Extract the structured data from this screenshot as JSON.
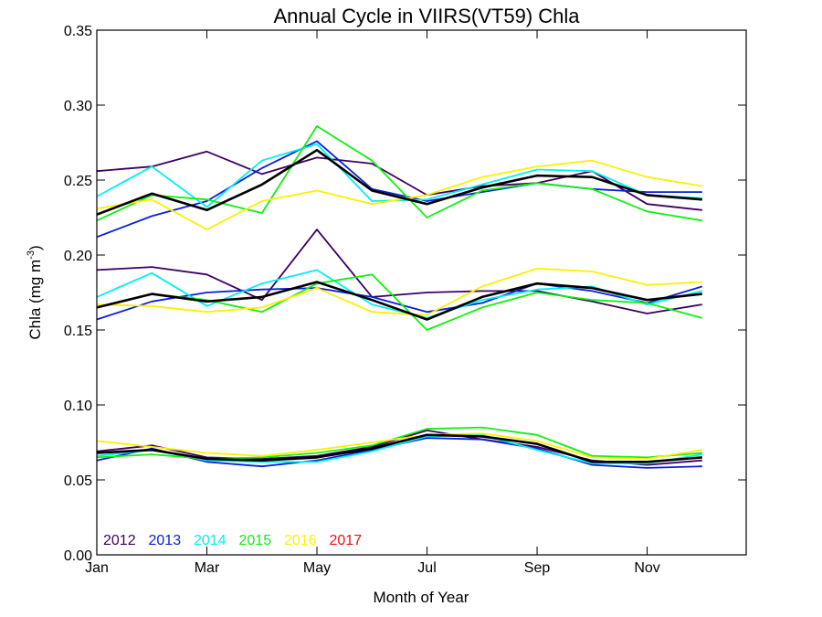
{
  "chart_data": {
    "type": "line",
    "title": "Annual Cycle in VIIRS(VT59) Chla",
    "xlabel": "Month of Year",
    "ylabel": "Chla (mg m",
    "ylabel_sup": "-3",
    "ylabel_close": ")",
    "xlim": [
      1,
      12.8
    ],
    "ylim": [
      0,
      0.35
    ],
    "x_ticks": [
      {
        "value": 1,
        "label": "Jan"
      },
      {
        "value": 3,
        "label": "Mar"
      },
      {
        "value": 5,
        "label": "May"
      },
      {
        "value": 7,
        "label": "Jul"
      },
      {
        "value": 9,
        "label": "Sep"
      },
      {
        "value": 11,
        "label": "Nov"
      }
    ],
    "y_ticks": [
      {
        "value": 0,
        "label": "0.00"
      },
      {
        "value": 0.05,
        "label": "0.05"
      },
      {
        "value": 0.1,
        "label": "0.10"
      },
      {
        "value": 0.15,
        "label": "0.15"
      },
      {
        "value": 0.2,
        "label": "0.20"
      },
      {
        "value": 0.25,
        "label": "0.25"
      },
      {
        "value": 0.3,
        "label": "0.30"
      },
      {
        "value": 0.35,
        "label": "0.35"
      }
    ],
    "grid": false,
    "legend_position": "bottom-left",
    "x": [
      1,
      2,
      3,
      4,
      5,
      6,
      7,
      8,
      9,
      10,
      11,
      12
    ],
    "series": [
      {
        "name": "2012",
        "color": "#3d0060",
        "groups": [
          [
            0.256,
            0.259,
            0.269,
            0.254,
            0.265,
            0.261,
            0.24,
            0.246,
            0.248,
            0.256,
            0.234,
            0.23
          ],
          [
            0.19,
            0.192,
            0.187,
            0.17,
            0.217,
            0.172,
            0.175,
            0.176,
            0.176,
            0.169,
            0.161,
            0.167
          ],
          [
            0.069,
            0.073,
            0.065,
            0.064,
            0.066,
            0.072,
            0.083,
            0.077,
            0.072,
            0.063,
            0.06,
            0.063
          ]
        ]
      },
      {
        "name": "2013",
        "color": "#0a1edc",
        "groups": [
          [
            0.212,
            0.226,
            0.236,
            0.258,
            0.276,
            0.244,
            0.236,
            0.242,
            0.248,
            0.244,
            0.242,
            0.242
          ],
          [
            0.157,
            0.169,
            0.175,
            0.177,
            0.178,
            0.172,
            0.162,
            0.168,
            0.181,
            0.176,
            0.168,
            0.179
          ],
          [
            0.063,
            0.071,
            0.062,
            0.059,
            0.063,
            0.07,
            0.078,
            0.077,
            0.071,
            0.06,
            0.058,
            0.059
          ]
        ]
      },
      {
        "name": "2014",
        "color": "#00f0f0",
        "groups": [
          [
            0.239,
            0.259,
            0.232,
            0.263,
            0.274,
            0.236,
            0.237,
            0.247,
            0.257,
            0.256,
            0.24,
            0.238
          ],
          [
            0.172,
            0.188,
            0.166,
            0.181,
            0.19,
            0.167,
            0.158,
            0.17,
            0.177,
            0.179,
            0.167,
            0.176
          ],
          [
            0.066,
            0.07,
            0.063,
            0.062,
            0.062,
            0.069,
            0.079,
            0.08,
            0.07,
            0.061,
            0.061,
            0.067
          ]
        ]
      },
      {
        "name": "2015",
        "color": "#10f010",
        "groups": [
          [
            0.223,
            0.24,
            0.237,
            0.228,
            0.286,
            0.263,
            0.225,
            0.243,
            0.248,
            0.244,
            0.229,
            0.223
          ],
          [
            0.165,
            0.174,
            0.17,
            0.162,
            0.181,
            0.187,
            0.15,
            0.165,
            0.175,
            0.17,
            0.168,
            0.158
          ],
          [
            0.065,
            0.067,
            0.064,
            0.065,
            0.068,
            0.073,
            0.084,
            0.085,
            0.08,
            0.066,
            0.065,
            0.068
          ]
        ]
      },
      {
        "name": "2016",
        "color": "#fcf000",
        "groups": [
          [
            0.231,
            0.237,
            0.217,
            0.236,
            0.243,
            0.234,
            0.24,
            0.252,
            0.259,
            0.263,
            0.252,
            0.246
          ],
          [
            0.167,
            0.166,
            0.162,
            0.165,
            0.178,
            0.162,
            0.16,
            0.179,
            0.191,
            0.189,
            0.18,
            0.182
          ],
          [
            0.076,
            0.072,
            0.068,
            0.066,
            0.07,
            0.075,
            0.08,
            0.081,
            0.076,
            0.065,
            0.064,
            0.07
          ]
        ]
      },
      {
        "name": "2017",
        "color": "#ee1010",
        "groups": []
      },
      {
        "name": "",
        "color": "#000000",
        "width": 2.6,
        "groups": [
          [
            0.227,
            0.241,
            0.23,
            0.247,
            0.27,
            0.243,
            0.234,
            0.245,
            0.253,
            0.252,
            0.24,
            0.237
          ],
          [
            0.165,
            0.174,
            0.169,
            0.172,
            0.182,
            0.17,
            0.157,
            0.172,
            0.181,
            0.178,
            0.17,
            0.174
          ],
          [
            0.068,
            0.07,
            0.064,
            0.063,
            0.065,
            0.071,
            0.08,
            0.079,
            0.074,
            0.062,
            0.062,
            0.065
          ]
        ]
      }
    ]
  }
}
